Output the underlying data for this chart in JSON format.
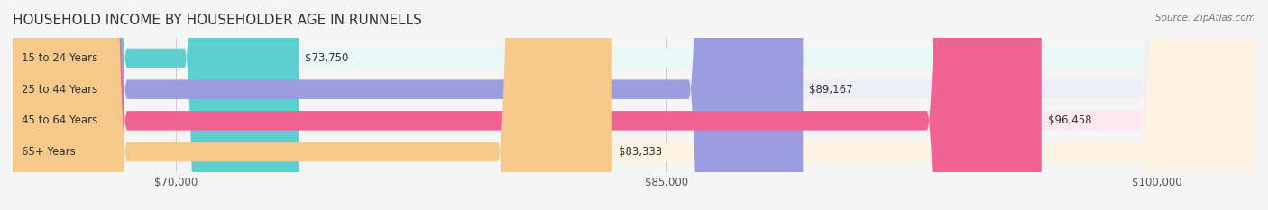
{
  "title": "HOUSEHOLD INCOME BY HOUSEHOLDER AGE IN RUNNELLS",
  "source": "Source: ZipAtlas.com",
  "categories": [
    "15 to 24 Years",
    "25 to 44 Years",
    "45 to 64 Years",
    "65+ Years"
  ],
  "values": [
    73750,
    89167,
    96458,
    83333
  ],
  "bar_colors": [
    "#5ecfcf",
    "#9b9de0",
    "#f06292",
    "#f5c989"
  ],
  "bar_bg_colors": [
    "#e8f8f8",
    "#eeeef9",
    "#fde8ef",
    "#fdf3e3"
  ],
  "value_labels": [
    "$73,750",
    "$89,167",
    "$96,458",
    "$83,333"
  ],
  "xmin": 65000,
  "xmax": 103000,
  "xticks": [
    70000,
    85000,
    100000
  ],
  "xtick_labels": [
    "$70,000",
    "$85,000",
    "$100,000"
  ],
  "title_fontsize": 11,
  "label_fontsize": 8.5,
  "value_fontsize": 8.5,
  "bar_height": 0.62,
  "background_color": "#f5f5f5"
}
